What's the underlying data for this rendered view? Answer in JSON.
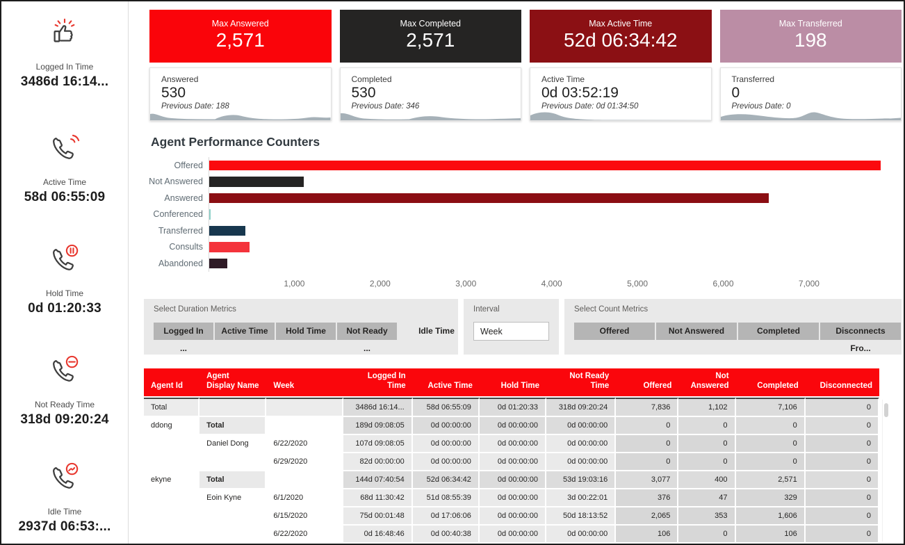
{
  "sidebar": {
    "kpis": [
      {
        "icon": "thumbs-up-icon",
        "label": "Logged In Time",
        "value": "3486d 16:14..."
      },
      {
        "icon": "phone-signal-icon",
        "label": "Active Time",
        "value": "58d 06:55:09"
      },
      {
        "icon": "phone-pause-icon",
        "label": "Hold Time",
        "value": "0d 01:20:33"
      },
      {
        "icon": "phone-minus-icon",
        "label": "Not Ready Time",
        "value": "318d 09:20:24"
      },
      {
        "icon": "phone-pulse-icon",
        "label": "Idle Time",
        "value": "2937d 06:53:..."
      }
    ]
  },
  "max_cards": [
    {
      "label": "Max Answered",
      "value": "2,571",
      "bg": "#fa040a"
    },
    {
      "label": "Max Completed",
      "value": "2,571",
      "bg": "#252423"
    },
    {
      "label": "Max Active Time",
      "value": "52d 06:34:42",
      "bg": "#8b1014"
    },
    {
      "label": "Max Transferred",
      "value": "198",
      "bg": "#bb8da5"
    }
  ],
  "stat_cards": [
    {
      "label": "Answered",
      "value": "530",
      "previous": "Previous Date: 188"
    },
    {
      "label": "Completed",
      "value": "530",
      "previous": "Previous Date: 346"
    },
    {
      "label": "Active Time",
      "value": "0d 03:52:19",
      "previous": "Previous Date: 0d 01:34:50"
    },
    {
      "label": "Transferred",
      "value": "0",
      "previous": "Previous Date: 0"
    }
  ],
  "chart_data": {
    "type": "bar",
    "orientation": "horizontal",
    "title": "Agent Performance Counters",
    "categories": [
      "Offered",
      "Not Answered",
      "Answered",
      "Conferenced",
      "Transferred",
      "Consults",
      "Abandoned"
    ],
    "values": [
      7836,
      1102,
      6530,
      15,
      420,
      470,
      210
    ],
    "colors": [
      "#fb0a0e",
      "#252423",
      "#8b0e13",
      "#8fd0c8",
      "#17374e",
      "#f4333b",
      "#2f1b26"
    ],
    "xlim": [
      0,
      7900
    ],
    "xticks": [
      1000,
      2000,
      3000,
      4000,
      5000,
      6000,
      7000
    ],
    "xtick_labels": [
      "1,000",
      "2,000",
      "3,000",
      "4,000",
      "5,000",
      "6,000",
      "7,000"
    ],
    "grid": false,
    "legend": false
  },
  "filters": {
    "duration_panel": {
      "label": "Select Duration Metrics",
      "buttons": [
        {
          "label": "Logged In ...",
          "selected": true
        },
        {
          "label": "Active Time",
          "selected": true
        },
        {
          "label": "Hold Time",
          "selected": true
        },
        {
          "label": "Not Ready ...",
          "selected": true
        },
        {
          "label": "Idle Time",
          "selected": false
        }
      ]
    },
    "interval_panel": {
      "label": "Interval",
      "value": "Week"
    },
    "count_panel": {
      "label": "Select Count Metrics",
      "buttons": [
        {
          "label": "Offered",
          "selected": true
        },
        {
          "label": "Not Answered",
          "selected": true
        },
        {
          "label": "Completed",
          "selected": true
        },
        {
          "label": "Disconnects Fro...",
          "selected": true
        }
      ]
    }
  },
  "table": {
    "columns": [
      "Agent Id",
      "Agent Display Name",
      "Week",
      "Logged In Time",
      "Active Time",
      "Hold Time",
      "Not Ready Time",
      "Offered",
      "Not Answered",
      "Completed",
      "Disconnected"
    ],
    "rows": [
      {
        "type": "grand",
        "cells": [
          "Total",
          "",
          "",
          "3486d 16:14...",
          "58d 06:55:09",
          "0d 01:20:33",
          "318d 09:20:24",
          "7,836",
          "1,102",
          "7,106",
          "0"
        ]
      },
      {
        "type": "group",
        "cells": [
          "ddong",
          "Total",
          "",
          "189d 09:08:05",
          "0d 00:00:00",
          "0d 00:00:00",
          "0d 00:00:00",
          "0",
          "0",
          "0",
          "0"
        ]
      },
      {
        "type": "detail",
        "cells": [
          "",
          "Daniel Dong",
          "6/22/2020",
          "107d 09:08:05",
          "0d 00:00:00",
          "0d 00:00:00",
          "0d 00:00:00",
          "0",
          "0",
          "0",
          "0"
        ]
      },
      {
        "type": "detail",
        "cells": [
          "",
          "",
          "6/29/2020",
          "82d 00:00:00",
          "0d 00:00:00",
          "0d 00:00:00",
          "0d 00:00:00",
          "0",
          "0",
          "0",
          "0"
        ]
      },
      {
        "type": "group",
        "cells": [
          "ekyne",
          "Total",
          "",
          "144d 07:40:54",
          "52d 06:34:42",
          "0d 00:00:00",
          "53d 19:03:16",
          "3,077",
          "400",
          "2,571",
          "0"
        ]
      },
      {
        "type": "detail",
        "cells": [
          "",
          "Eoin Kyne",
          "6/1/2020",
          "68d 11:30:42",
          "51d 08:55:39",
          "0d 00:00:00",
          "3d 00:22:01",
          "376",
          "47",
          "329",
          "0"
        ]
      },
      {
        "type": "detail",
        "cells": [
          "",
          "",
          "6/15/2020",
          "75d 00:01:48",
          "0d 17:06:06",
          "0d 00:00:00",
          "50d 18:13:52",
          "2,065",
          "353",
          "1,606",
          "0"
        ]
      },
      {
        "type": "detail",
        "cells": [
          "",
          "",
          "6/22/2020",
          "0d 16:48:46",
          "0d 00:40:38",
          "0d 00:00:00",
          "0d 00:00:00",
          "106",
          "0",
          "106",
          "0"
        ]
      }
    ]
  }
}
